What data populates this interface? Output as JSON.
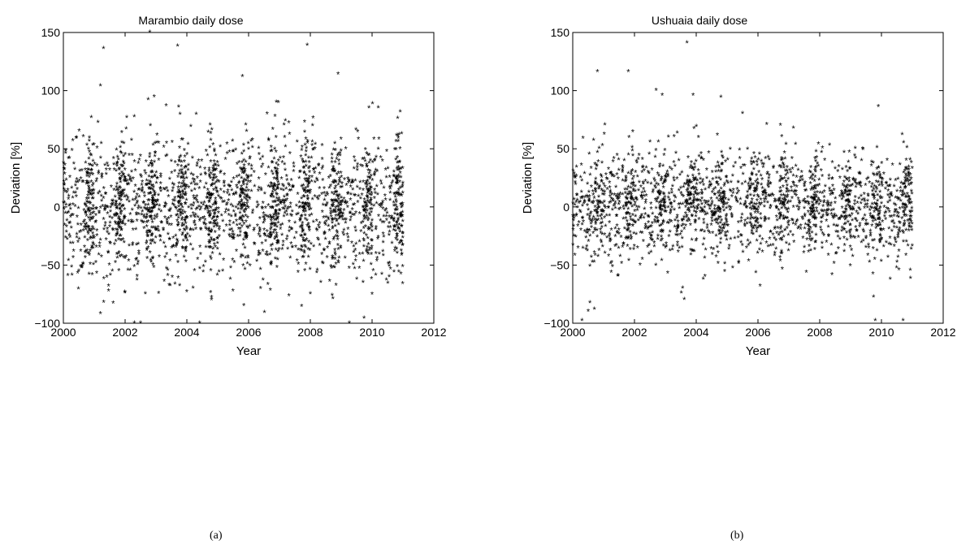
{
  "chart_data": [
    {
      "type": "scatter",
      "title": "Marambio daily dose",
      "xlabel": "Year",
      "ylabel": "Deviation [%]",
      "xlim": [
        2000,
        2012
      ],
      "ylim": [
        -100,
        150
      ],
      "xticks": [
        2000,
        2002,
        2004,
        2006,
        2008,
        2010,
        2012
      ],
      "yticks": [
        -100,
        -50,
        0,
        50,
        100,
        150
      ],
      "grid": false,
      "marker": "*",
      "caption": "(a)",
      "series": [
        {
          "color": "#0000ff",
          "spread": 30,
          "outliers": [
            [
              2001.3,
              136
            ],
            [
              2001.2,
              -92
            ],
            [
              2002.5,
              -100
            ],
            [
              2004.8,
              -80
            ],
            [
              2008.0,
              -75
            ],
            [
              2010.2,
              85
            ],
            [
              2004.2,
              -70
            ]
          ]
        },
        {
          "color": "#ff0000",
          "spread": 26,
          "outliers": [
            [
              2002.8,
              150
            ],
            [
              2003.7,
              138
            ],
            [
              2005.8,
              112
            ],
            [
              2007.9,
              139
            ],
            [
              2006.9,
              90
            ],
            [
              2008.9,
              114
            ],
            [
              2002.3,
              -100
            ],
            [
              2009.9,
              85
            ],
            [
              2004.8,
              -78
            ]
          ]
        }
      ]
    },
    {
      "type": "scatter",
      "title": "Ushuaia daily dose",
      "xlabel": "Year",
      "ylabel": "Deviation [%]",
      "xlim": [
        2000,
        2012
      ],
      "ylim": [
        -100,
        150
      ],
      "xticks": [
        2000,
        2002,
        2004,
        2006,
        2008,
        2010,
        2012
      ],
      "yticks": [
        -100,
        -50,
        0,
        50,
        100,
        150
      ],
      "grid": false,
      "marker": "*",
      "caption": "(b)",
      "series": [
        {
          "color": "#0000ff",
          "spread": 24,
          "outliers": [
            [
              2001.8,
              116
            ],
            [
              2000.3,
              -98
            ],
            [
              2009.8,
              -98
            ],
            [
              2010.7,
              -98
            ],
            [
              2000.5,
              -90
            ],
            [
              2005.5,
              80
            ],
            [
              2003.1,
              60
            ]
          ]
        },
        {
          "color": "#ff0000",
          "spread": 20,
          "outliers": [
            [
              2003.7,
              141
            ],
            [
              2000.8,
              116
            ],
            [
              2002.7,
              100
            ],
            [
              2003.9,
              96
            ],
            [
              2004.8,
              94
            ],
            [
              2009.9,
              86
            ],
            [
              2000.7,
              -88
            ],
            [
              2002.9,
              96
            ]
          ]
        }
      ]
    }
  ]
}
